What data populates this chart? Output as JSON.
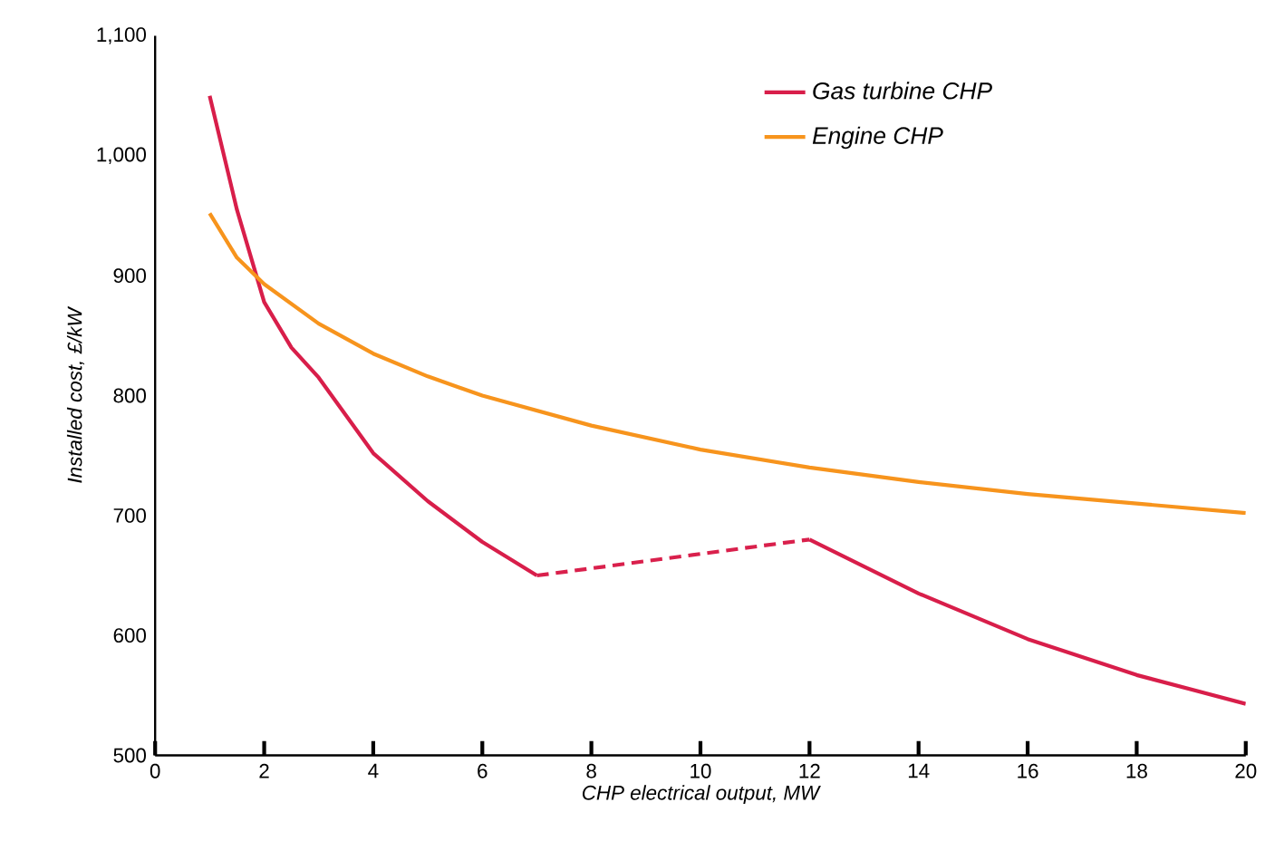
{
  "chart_data": {
    "type": "line",
    "xlabel": "CHP electrical output, MW",
    "ylabel": "Installed cost, £/kW",
    "xlim": [
      0,
      20
    ],
    "ylim": [
      500,
      1100
    ],
    "xticks": [
      0,
      2,
      4,
      6,
      8,
      10,
      12,
      14,
      16,
      18,
      20
    ],
    "yticks": [
      500,
      600,
      700,
      800,
      900,
      {
        "value": 1000,
        "label": "1,000"
      },
      {
        "value": 1100,
        "label": "1,100"
      }
    ],
    "grid": false,
    "legend": "top right",
    "marker": "none",
    "series": [
      {
        "name": "Gas turbine CHP",
        "color": "#d81e4a",
        "line_style": "solid",
        "x": [
          1,
          1.5,
          2,
          2.5,
          3,
          4,
          5,
          6,
          7,
          9.5,
          12,
          14,
          16,
          18,
          20
        ],
        "values": [
          1050,
          955,
          878,
          840,
          815,
          752,
          712,
          678,
          650,
          null,
          680,
          635,
          597,
          567,
          543
        ]
      },
      {
        "name": "Engine CHP",
        "color": "#f7941d",
        "line_style": "solid",
        "x": [
          1,
          1.5,
          2,
          3,
          4,
          5,
          6,
          8,
          10,
          12,
          14,
          16,
          18,
          20
        ],
        "values": [
          952,
          915,
          893,
          860,
          835,
          816,
          800,
          775,
          755,
          740,
          728,
          718,
          710,
          702
        ]
      },
      {
        "color": "#d9204c",
        "line_style": "dashed",
        "x": [
          7,
          12
        ],
        "values": [
          650,
          680
        ]
      }
    ]
  }
}
